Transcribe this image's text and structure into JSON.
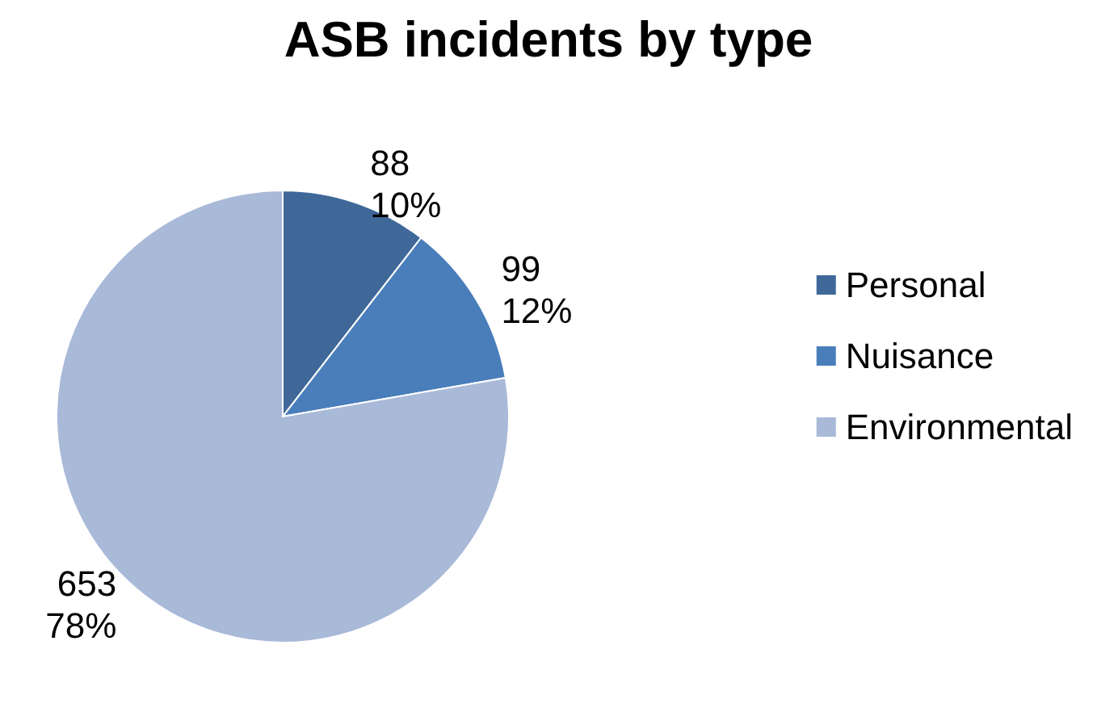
{
  "chart_data": {
    "type": "pie",
    "title": "ASB incidents by type",
    "categories": [
      "Personal",
      "Nuisance",
      "Environmental"
    ],
    "values": [
      88,
      99,
      653
    ],
    "colors": [
      "#3f6899",
      "#4a7ebb",
      "#a9b9d8"
    ],
    "value_labels": [
      "88\n10%",
      "99\n12%",
      "653\n78%"
    ],
    "legend": "right"
  }
}
